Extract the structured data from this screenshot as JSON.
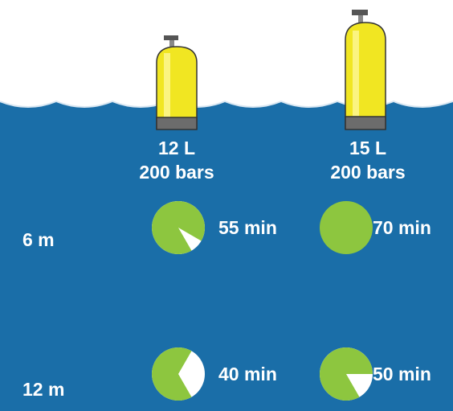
{
  "tanks": [
    {
      "volume": "12 L",
      "pressure": "200 bars"
    },
    {
      "volume": "15 L",
      "pressure": "200 bars"
    }
  ],
  "depths": [
    {
      "label": "6 m",
      "durations": [
        {
          "value": 55,
          "label": "55 min"
        },
        {
          "value": 70,
          "label": "70 min"
        }
      ]
    },
    {
      "label": "12 m",
      "durations": [
        {
          "value": 40,
          "label": "40 min"
        },
        {
          "value": 50,
          "label": "50 min"
        }
      ]
    }
  ]
}
